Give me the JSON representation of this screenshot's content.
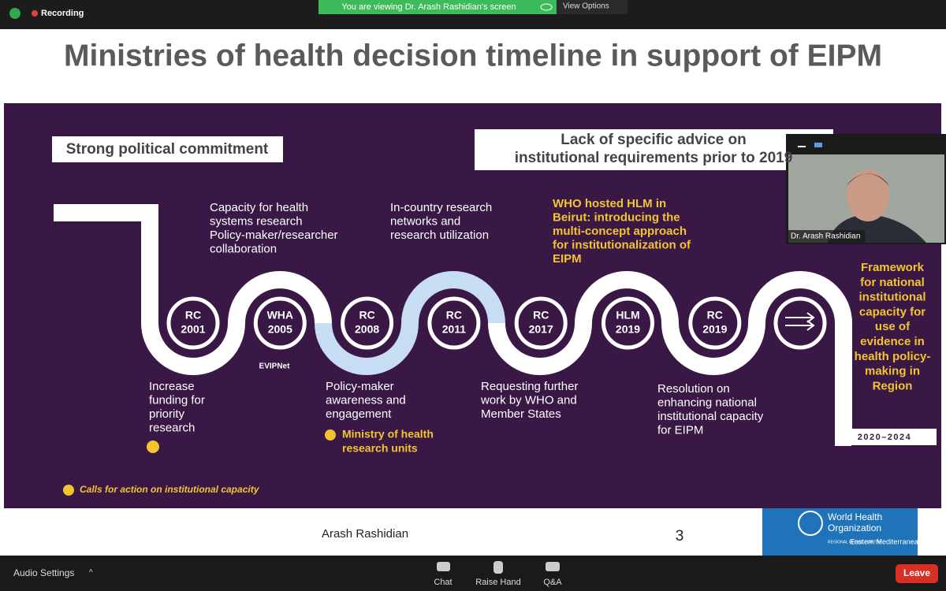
{
  "zoom_top": {
    "recording": "Recording",
    "banner": "You are viewing Dr. Arash Rashidian's screen",
    "view_options": "View Options"
  },
  "slide": {
    "title": "Ministries of health decision timeline in support of EIPM",
    "commitment": "Strong political commitment",
    "lack_advice": [
      "Lack of specific advice on",
      "institutional requirements prior to 2019"
    ],
    "milestones": [
      {
        "label": "RC",
        "year": "2001"
      },
      {
        "label": "WHA",
        "year": "2005"
      },
      {
        "label": "RC",
        "year": "2008"
      },
      {
        "label": "RC",
        "year": "2011"
      },
      {
        "label": "RC",
        "year": "2017"
      },
      {
        "label": "HLM",
        "year": "2019"
      },
      {
        "label": "RC",
        "year": "2019"
      }
    ],
    "top_notes": [
      [
        "Capacity for health",
        "systems research",
        "Policy-maker/researcher",
        "collaboration"
      ],
      [
        "In-country research",
        "networks and",
        "research utilization"
      ],
      [
        "WHO hosted HLM in",
        "Beirut: introducing the",
        "multi-concept approach",
        "for institutionalization of",
        "EIPM"
      ]
    ],
    "bottom_notes": [
      [
        "Increase",
        "funding for",
        "priority",
        "research"
      ],
      [
        "Policy-maker",
        "awareness and",
        "engagement"
      ],
      [
        "Requesting further",
        "work by WHO and",
        "Member States"
      ],
      [
        "Resolution on",
        "enhancing national",
        "institutional capacity",
        "for EIPM"
      ]
    ],
    "ministry_units": [
      "Ministry of health",
      "research units"
    ],
    "evipnet": "EVIPNet",
    "year_2019": "2019",
    "period": "2020–2024",
    "framework": [
      "Framework",
      "for national",
      "institutional",
      "capacity for",
      "use of",
      "evidence in",
      "health policy-",
      "making in",
      "Region"
    ],
    "legend": "Calls for action on institutional capacity",
    "presenter": "Arash Rashidian",
    "page": "3",
    "who_logo": [
      "World Health",
      "Organization",
      "REGIONAL OFFICE FOR THE",
      "Eastern Mediterranean"
    ]
  },
  "video": {
    "name": "Dr. Arash Rashidian"
  },
  "zoom_bottom": {
    "audio": "Audio Settings",
    "chat": "Chat",
    "raise_hand": "Raise Hand",
    "qa": "Q&A",
    "leave": "Leave"
  }
}
